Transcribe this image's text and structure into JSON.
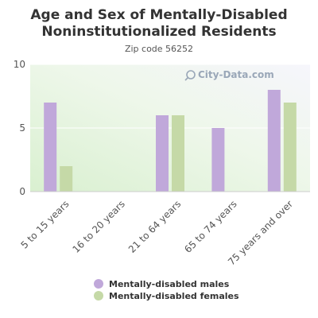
{
  "chart_data": {
    "type": "bar",
    "title_lines": [
      "Age and Sex of Mentally-Disabled",
      "Noninstitutionalized Residents"
    ],
    "subtitle": "Zip code 56252",
    "categories": [
      "5 to 15 years",
      "16 to 20 years",
      "21 to 64 years",
      "65 to 74 years",
      "75 years and over"
    ],
    "series": [
      {
        "name": "Mentally-disabled males",
        "values": [
          7,
          0,
          6,
          5,
          8
        ],
        "color": "#c0a8da"
      },
      {
        "name": "Mentally-disabled females",
        "values": [
          2,
          0,
          6,
          0,
          7
        ],
        "color": "#c5d9a7"
      }
    ],
    "ylim": [
      0,
      10
    ],
    "yticks": [
      0,
      5,
      10
    ],
    "grid": true,
    "legend": "bottom",
    "xlabel": "",
    "ylabel": ""
  },
  "watermark": "City-Data.com"
}
